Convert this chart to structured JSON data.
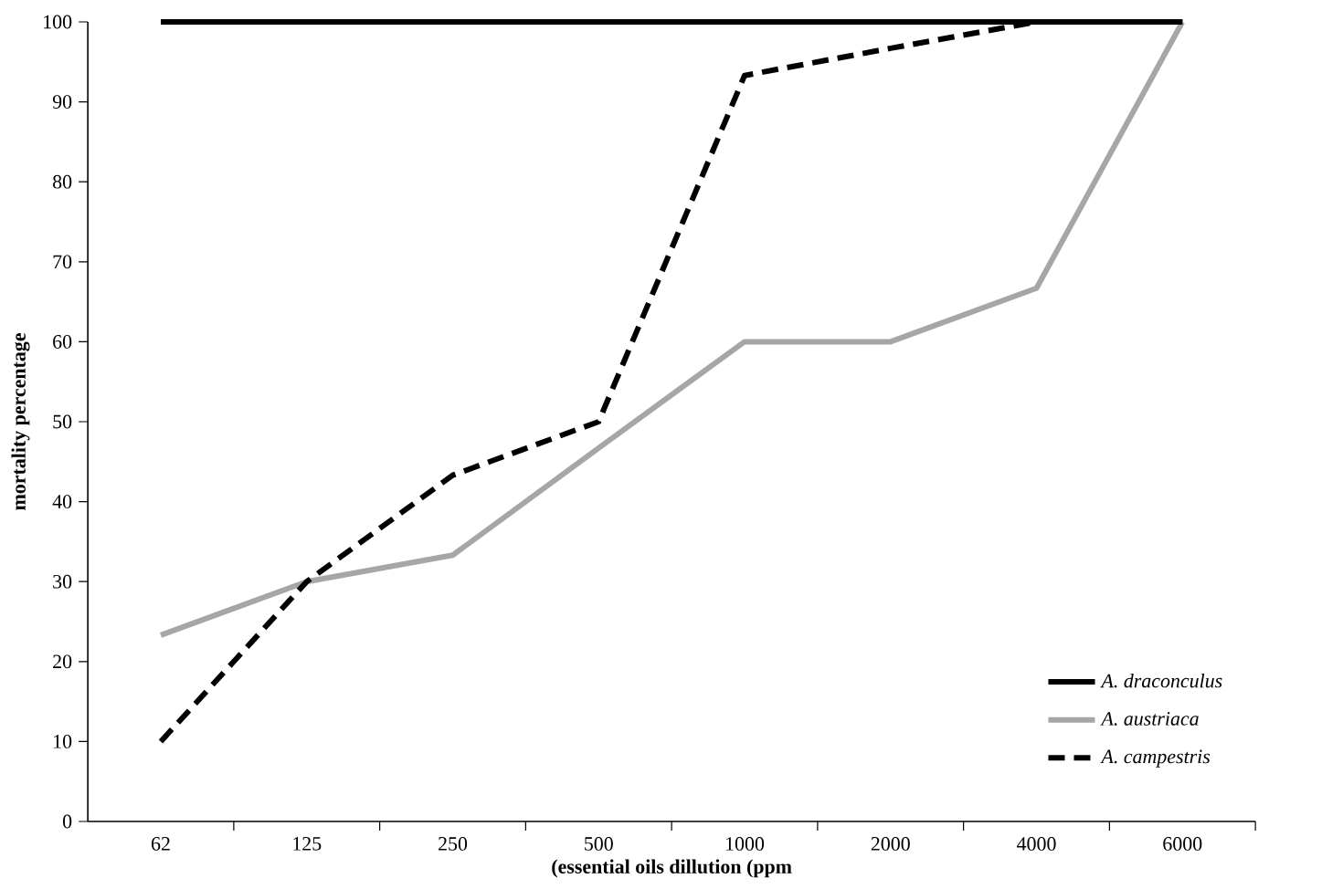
{
  "chart_data": {
    "type": "line",
    "xlabel": "(essential oils dillution (ppm",
    "ylabel": "mortality percentage",
    "categories": [
      "62",
      "125",
      "250",
      "500",
      "1000",
      "2000",
      "4000",
      "6000"
    ],
    "series": [
      {
        "name": "*A. draconculus*",
        "color": "#000000",
        "values": [
          100,
          100,
          100,
          100,
          100,
          100,
          100,
          100
        ]
      },
      {
        "name": "*A. austriaca*",
        "color": "#a6a6a6",
        "values": [
          23.3,
          30,
          33.3,
          46.7,
          60,
          60,
          66.7,
          100
        ]
      },
      {
        "name": "*A. campestris*",
        "color": "#000000",
        "line_style": "dashed",
        "values": [
          10,
          30,
          43.3,
          50,
          93.3,
          96.7,
          100,
          100
        ]
      }
    ],
    "ylim": [
      0,
      100
    ],
    "yticks": [
      0,
      10,
      20,
      30,
      40,
      50,
      60,
      70,
      80,
      90,
      100
    ],
    "grid": false,
    "legend": "bottom right",
    "marker": "none",
    "line_style": "solid"
  }
}
